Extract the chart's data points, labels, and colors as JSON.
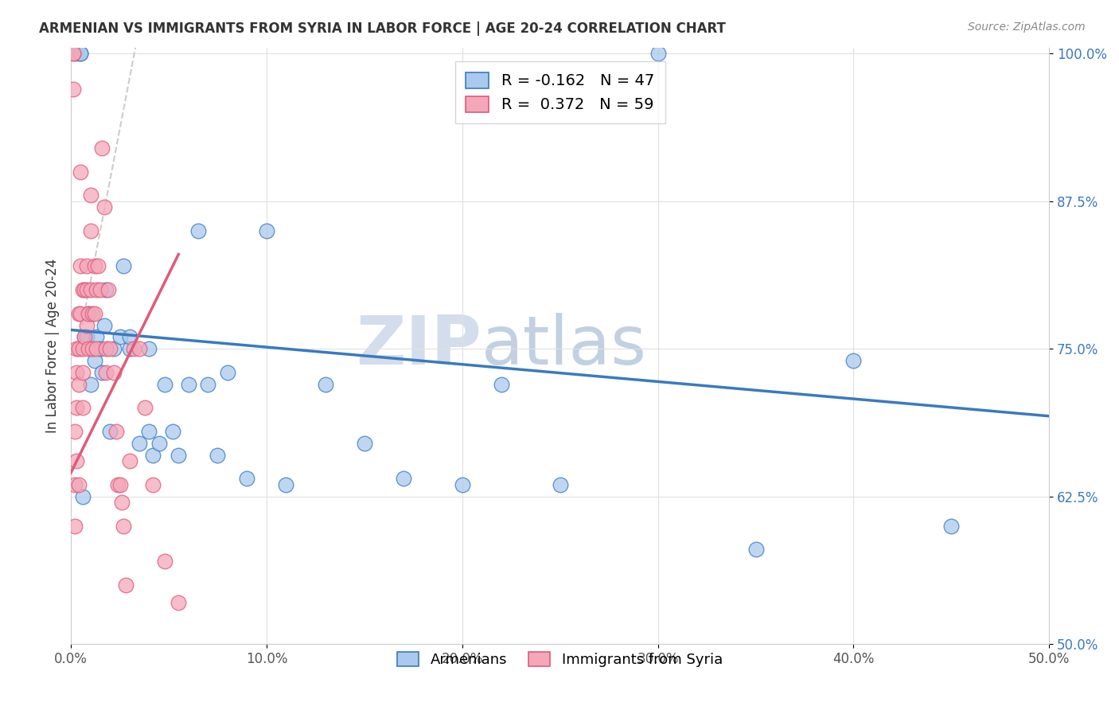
{
  "title": "ARMENIAN VS IMMIGRANTS FROM SYRIA IN LABOR FORCE | AGE 20-24 CORRELATION CHART",
  "source": "Source: ZipAtlas.com",
  "xlabel": "",
  "ylabel": "In Labor Force | Age 20-24",
  "xlim": [
    0.0,
    0.5
  ],
  "ylim": [
    0.5,
    1.005
  ],
  "xticks": [
    0.0,
    0.1,
    0.2,
    0.3,
    0.4,
    0.5
  ],
  "xticklabels": [
    "0.0%",
    "10.0%",
    "20.0%",
    "30.0%",
    "40.0%",
    "50.0%"
  ],
  "yticks": [
    0.5,
    0.625,
    0.75,
    0.875,
    1.0
  ],
  "yticklabels": [
    "50.0%",
    "62.5%",
    "75.0%",
    "87.5%",
    "100.0%"
  ],
  "legend_armenians": "Armenians",
  "legend_syrians": "Immigrants from Syria",
  "r_armenians": -0.162,
  "n_armenians": 47,
  "r_syrians": 0.372,
  "n_syrians": 59,
  "blue_color": "#aac9ee",
  "pink_color": "#f4a7b9",
  "blue_line_color": "#3a7abf",
  "pink_line_color": "#e05a7a",
  "gray_line_color": "#cccccc",
  "watermark_zip": "ZIP",
  "watermark_atlas": "atlas",
  "blue_line_x": [
    0.0,
    0.5
  ],
  "blue_line_y": [
    0.766,
    0.693
  ],
  "pink_line_x": [
    0.0,
    0.055
  ],
  "pink_line_y": [
    0.645,
    0.83
  ],
  "gray_line_x": [
    0.004,
    0.033
  ],
  "gray_line_y": [
    0.755,
    1.005
  ],
  "blue_scatter_x": [
    0.003,
    0.005,
    0.005,
    0.006,
    0.007,
    0.008,
    0.009,
    0.01,
    0.011,
    0.012,
    0.013,
    0.015,
    0.016,
    0.017,
    0.018,
    0.02,
    0.022,
    0.025,
    0.027,
    0.03,
    0.03,
    0.035,
    0.04,
    0.04,
    0.042,
    0.045,
    0.048,
    0.052,
    0.055,
    0.06,
    0.065,
    0.07,
    0.075,
    0.08,
    0.09,
    0.1,
    0.11,
    0.13,
    0.15,
    0.17,
    0.2,
    0.22,
    0.25,
    0.3,
    0.35,
    0.4,
    0.45
  ],
  "blue_scatter_y": [
    1.0,
    1.0,
    1.0,
    0.625,
    0.76,
    0.76,
    0.78,
    0.72,
    0.75,
    0.74,
    0.76,
    0.75,
    0.73,
    0.77,
    0.8,
    0.68,
    0.75,
    0.76,
    0.82,
    0.75,
    0.76,
    0.67,
    0.75,
    0.68,
    0.66,
    0.67,
    0.72,
    0.68,
    0.66,
    0.72,
    0.85,
    0.72,
    0.66,
    0.73,
    0.64,
    0.85,
    0.635,
    0.72,
    0.67,
    0.64,
    0.635,
    0.72,
    0.635,
    1.0,
    0.58,
    0.74,
    0.6
  ],
  "pink_scatter_x": [
    0.001,
    0.001,
    0.001,
    0.002,
    0.002,
    0.002,
    0.003,
    0.003,
    0.003,
    0.003,
    0.004,
    0.004,
    0.004,
    0.004,
    0.005,
    0.005,
    0.005,
    0.006,
    0.006,
    0.006,
    0.006,
    0.007,
    0.007,
    0.008,
    0.008,
    0.008,
    0.009,
    0.009,
    0.01,
    0.01,
    0.01,
    0.011,
    0.011,
    0.012,
    0.012,
    0.013,
    0.013,
    0.014,
    0.015,
    0.016,
    0.017,
    0.018,
    0.018,
    0.019,
    0.02,
    0.022,
    0.023,
    0.024,
    0.025,
    0.026,
    0.027,
    0.028,
    0.03,
    0.032,
    0.035,
    0.038,
    0.042,
    0.048,
    0.055
  ],
  "pink_scatter_y": [
    0.97,
    1.0,
    1.0,
    0.68,
    0.635,
    0.6,
    0.75,
    0.73,
    0.7,
    0.655,
    0.78,
    0.75,
    0.72,
    0.635,
    0.9,
    0.82,
    0.78,
    0.8,
    0.75,
    0.73,
    0.7,
    0.8,
    0.76,
    0.82,
    0.8,
    0.77,
    0.78,
    0.75,
    0.88,
    0.85,
    0.8,
    0.78,
    0.75,
    0.82,
    0.78,
    0.8,
    0.75,
    0.82,
    0.8,
    0.92,
    0.87,
    0.75,
    0.73,
    0.8,
    0.75,
    0.73,
    0.68,
    0.635,
    0.635,
    0.62,
    0.6,
    0.55,
    0.655,
    0.75,
    0.75,
    0.7,
    0.635,
    0.57,
    0.535
  ]
}
